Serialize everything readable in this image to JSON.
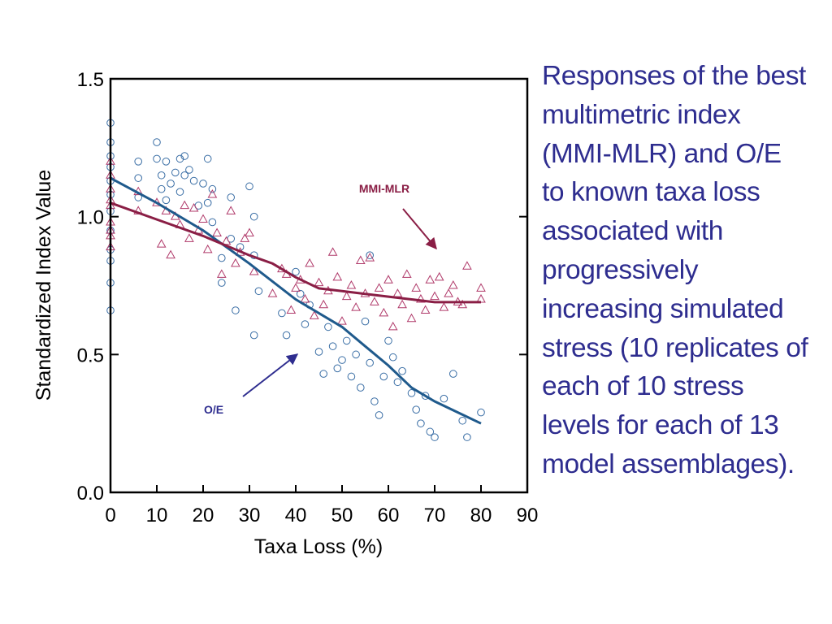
{
  "caption": {
    "lines": [
      "Responses of the best",
      "multimetric index",
      "(MMI-MLR) and O/E",
      "to known taxa loss",
      "associated with",
      "progressively",
      "increasing simulated",
      "stress (10 replicates of",
      "each of 10 stress",
      "levels for each of 13",
      "model assemblages)."
    ]
  },
  "colors": {
    "oe": "#1f5a8c",
    "mmi": "#8a1e45",
    "oe_marker": "#3a6ea5",
    "mmi_marker": "#b03a6a",
    "caption": "#2e2d8f",
    "axis": "#000000"
  },
  "chart_data": {
    "type": "scatter",
    "xlabel": "Taxa Loss (%)",
    "ylabel": "Standardized Index Value",
    "xlim": [
      0,
      90
    ],
    "ylim": [
      0,
      1.5
    ],
    "xticks": [
      0,
      10,
      20,
      30,
      40,
      50,
      60,
      70,
      80,
      90
    ],
    "xtick_labels": [
      "0",
      "10",
      "20",
      "30",
      "40",
      "50",
      "60",
      "70",
      "80",
      "90"
    ],
    "yticks": [
      0,
      0.5,
      1.0,
      1.5
    ],
    "ytick_labels": [
      "0.0",
      "0.5",
      "1.0",
      "1.5"
    ],
    "annotations": [
      {
        "text": "MMI-MLR",
        "series": "MMI-MLR"
      },
      {
        "text": "O/E",
        "series": "O/E"
      }
    ],
    "series": [
      {
        "name": "O/E",
        "marker": "circle",
        "scatter_x": [
          0,
          0,
          0,
          0,
          0,
          0,
          0,
          0,
          0,
          0,
          0,
          0,
          6,
          6,
          6,
          10,
          10,
          11,
          11,
          12,
          12,
          13,
          14,
          15,
          15,
          16,
          16,
          17,
          18,
          19,
          20,
          21,
          21,
          22,
          22,
          24,
          24,
          26,
          26,
          27,
          28,
          30,
          31,
          31,
          31,
          32,
          37,
          38,
          40,
          41,
          42,
          43,
          45,
          46,
          47,
          48,
          49,
          50,
          51,
          52,
          53,
          54,
          55,
          56,
          56,
          57,
          58,
          59,
          60,
          61,
          62,
          63,
          65,
          66,
          67,
          68,
          69,
          70,
          72,
          74,
          76,
          77,
          80
        ],
        "scatter_y": [
          1.34,
          1.27,
          1.22,
          1.18,
          1.13,
          1.08,
          1.02,
          0.95,
          0.88,
          0.84,
          0.76,
          0.66,
          1.2,
          1.14,
          1.07,
          1.27,
          1.21,
          1.15,
          1.1,
          1.2,
          1.06,
          1.12,
          1.16,
          1.21,
          1.09,
          1.22,
          1.15,
          1.17,
          1.13,
          1.04,
          1.12,
          1.21,
          1.05,
          1.1,
          0.98,
          0.85,
          0.76,
          1.07,
          0.92,
          0.66,
          0.89,
          1.11,
          1.0,
          0.86,
          0.57,
          0.73,
          0.65,
          0.57,
          0.8,
          0.72,
          0.61,
          0.68,
          0.51,
          0.43,
          0.6,
          0.53,
          0.45,
          0.48,
          0.55,
          0.42,
          0.5,
          0.38,
          0.62,
          0.86,
          0.47,
          0.33,
          0.28,
          0.42,
          0.55,
          0.49,
          0.4,
          0.44,
          0.36,
          0.3,
          0.25,
          0.35,
          0.22,
          0.2,
          0.34,
          0.43,
          0.26,
          0.2,
          0.29
        ],
        "fit_x": [
          0,
          10,
          20,
          30,
          40,
          50,
          55,
          60,
          65,
          70,
          75,
          80
        ],
        "fit_y": [
          1.14,
          1.05,
          0.95,
          0.83,
          0.7,
          0.6,
          0.53,
          0.46,
          0.38,
          0.33,
          0.29,
          0.25
        ]
      },
      {
        "name": "MMI-MLR",
        "marker": "triangle",
        "scatter_x": [
          0,
          0,
          0,
          0,
          0,
          0,
          0,
          0,
          0,
          6,
          6,
          10,
          11,
          12,
          13,
          14,
          15,
          16,
          17,
          18,
          19,
          20,
          21,
          22,
          23,
          24,
          25,
          26,
          27,
          28,
          29,
          30,
          31,
          35,
          37,
          38,
          39,
          40,
          41,
          42,
          43,
          44,
          45,
          46,
          47,
          48,
          49,
          50,
          51,
          52,
          53,
          54,
          55,
          56,
          57,
          58,
          59,
          60,
          61,
          62,
          63,
          64,
          65,
          66,
          67,
          68,
          69,
          70,
          71,
          72,
          73,
          74,
          75,
          76,
          77,
          80,
          80
        ],
        "scatter_y": [
          1.15,
          1.1,
          1.04,
          0.98,
          0.93,
          0.89,
          1.2,
          1.06,
          0.95,
          1.09,
          1.02,
          1.05,
          0.9,
          1.02,
          0.86,
          1.0,
          0.97,
          1.04,
          0.92,
          1.03,
          0.95,
          0.99,
          0.88,
          1.08,
          0.94,
          0.79,
          0.91,
          1.02,
          0.83,
          0.87,
          0.92,
          0.94,
          0.8,
          0.72,
          0.81,
          0.79,
          0.66,
          0.74,
          0.77,
          0.7,
          0.83,
          0.64,
          0.76,
          0.68,
          0.73,
          0.87,
          0.78,
          0.62,
          0.71,
          0.75,
          0.67,
          0.84,
          0.72,
          0.85,
          0.69,
          0.74,
          0.65,
          0.77,
          0.6,
          0.72,
          0.68,
          0.79,
          0.63,
          0.74,
          0.7,
          0.66,
          0.77,
          0.71,
          0.78,
          0.67,
          0.72,
          0.75,
          0.69,
          0.68,
          0.82,
          0.74,
          0.7
        ],
        "fit_x": [
          0,
          10,
          20,
          30,
          35,
          40,
          45,
          50,
          55,
          60,
          65,
          70,
          75,
          80
        ],
        "fit_y": [
          1.05,
          0.99,
          0.93,
          0.86,
          0.83,
          0.78,
          0.74,
          0.73,
          0.72,
          0.71,
          0.7,
          0.69,
          0.69,
          0.69
        ]
      }
    ]
  }
}
